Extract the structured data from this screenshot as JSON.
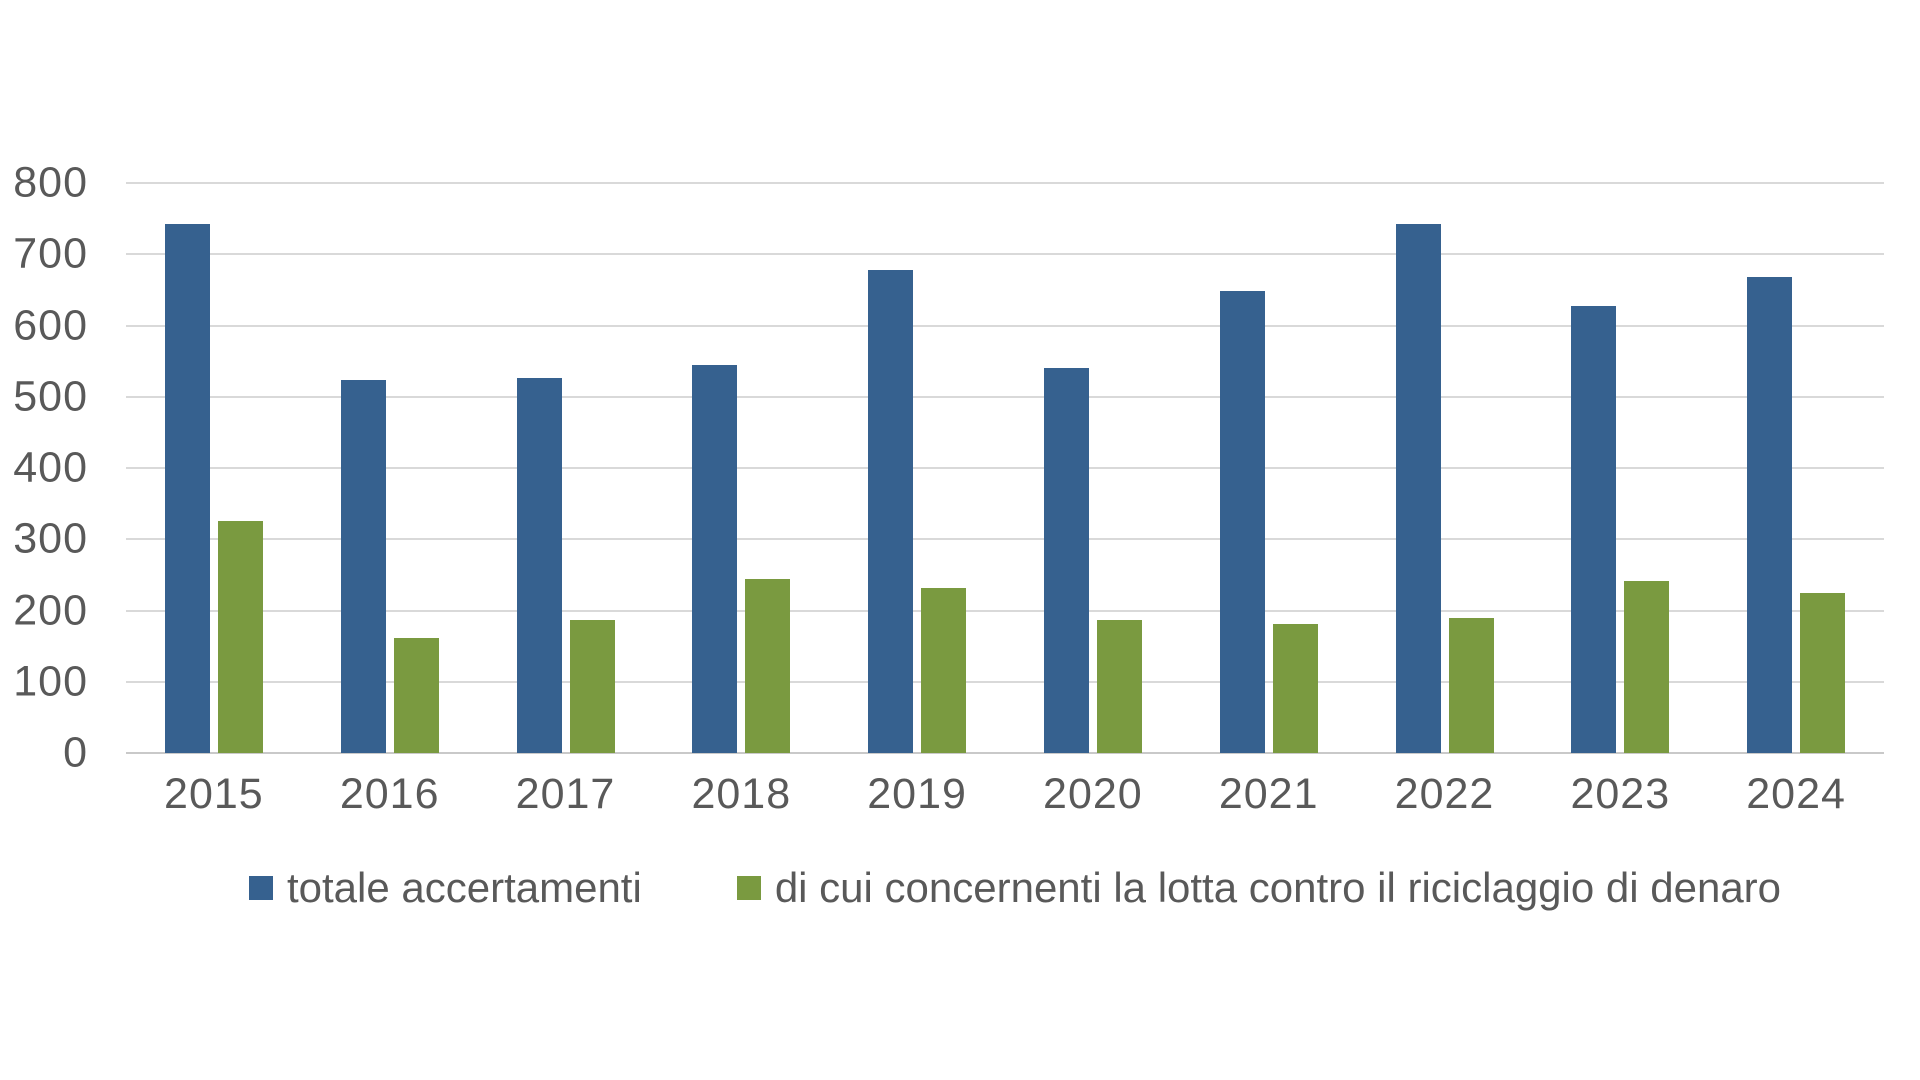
{
  "chart_data": {
    "type": "bar",
    "categories": [
      "2015",
      "2016",
      "2017",
      "2018",
      "2019",
      "2020",
      "2021",
      "2022",
      "2023",
      "2024"
    ],
    "series": [
      {
        "name": "totale accertamenti",
        "key": "totale-accertamenti",
        "color": "#36618F",
        "values": [
          742,
          523,
          526,
          544,
          678,
          540,
          648,
          742,
          627,
          668
        ]
      },
      {
        "name": "di cui concernenti la lotta contro il riciclaggio di denaro",
        "key": "riciclaggio-di-denaro",
        "color": "#7A9A40",
        "values": [
          326,
          162,
          187,
          244,
          231,
          187,
          181,
          190,
          242,
          225
        ]
      }
    ],
    "title": "",
    "xlabel": "",
    "ylabel": "",
    "ylim": [
      0,
      800
    ],
    "ytick_step": 100,
    "ytick_labels": [
      "0",
      "100",
      "200",
      "300",
      "400",
      "500",
      "600",
      "700",
      "800"
    ],
    "grid": true,
    "legend_position": "bottom",
    "background_color": "#FFFFFF",
    "text_color": "#595959",
    "gridline_color": "#D9D9D9"
  }
}
